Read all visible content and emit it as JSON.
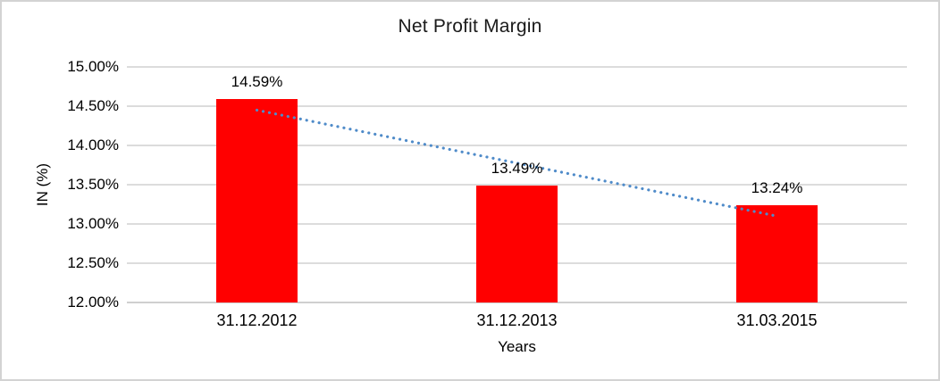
{
  "frame": {
    "border_color": "#d3d3d3",
    "background_color": "#ffffff"
  },
  "chart_data": {
    "type": "bar",
    "title": "Net Profit Margin",
    "xlabel": "Years",
    "ylabel": "IN (%)",
    "categories": [
      "31.12.2012",
      "31.12.2013",
      "31.03.2015"
    ],
    "values": [
      14.59,
      13.49,
      13.24
    ],
    "data_labels": [
      "14.59%",
      "13.49%",
      "13.24%"
    ],
    "ylim": [
      12,
      15
    ],
    "ytick_step": 0.5,
    "yticks": [
      {
        "value": 15.0,
        "label": "15.00%"
      },
      {
        "value": 14.5,
        "label": "14.50%"
      },
      {
        "value": 14.0,
        "label": "14.00%"
      },
      {
        "value": 13.5,
        "label": "13.50%"
      },
      {
        "value": 13.0,
        "label": "13.00%"
      },
      {
        "value": 12.5,
        "label": "12.50%"
      },
      {
        "value": 12.0,
        "label": "12.00%"
      }
    ],
    "grid": true,
    "legend": "none",
    "bar_color": "#ff0000",
    "gridline_color": "#dcdcdc",
    "text_color": "#000000",
    "trendline": {
      "type": "linear",
      "style": "dotted",
      "color": "#4f8bc9",
      "y_start": 14.45,
      "y_end": 13.1
    }
  }
}
